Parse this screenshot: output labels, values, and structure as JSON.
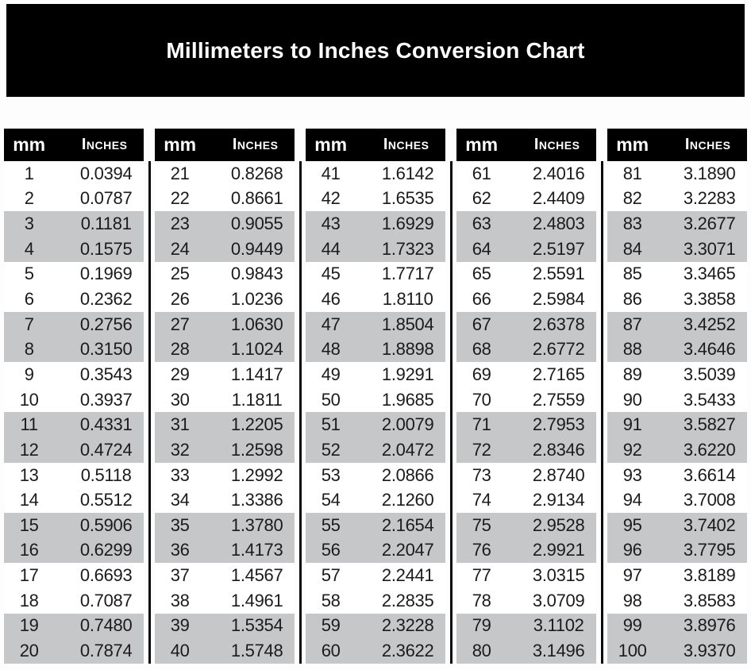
{
  "title": "Millimeters to Inches Conversion Chart",
  "column_headers": {
    "mm": "mm",
    "inches": "Inches"
  },
  "colors": {
    "title_bar_bg": "#000000",
    "title_text": "#ffffff",
    "table_header_bg": "#000000",
    "table_header_text": "#ffffff",
    "stripe_bg": "#c6c7c8",
    "row_bg": "#ffffff",
    "value_text": "#1b1b1b",
    "divider": "#0a0a0a"
  },
  "chart_data": {
    "type": "table",
    "title": "Millimeters to Inches Conversion Chart",
    "column_headers": [
      "mm",
      "Inches"
    ],
    "layout": "5 side-by-side tables of 20 rows, rows shaded gray in pairs (3-4, 7-8, 11-12, 15-16, 19-20 of each table), black vertical divider between tables",
    "tables": [
      {
        "rows": [
          [
            "1",
            "0.0394"
          ],
          [
            "2",
            "0.0787"
          ],
          [
            "3",
            "0.1181"
          ],
          [
            "4",
            "0.1575"
          ],
          [
            "5",
            "0.1969"
          ],
          [
            "6",
            "0.2362"
          ],
          [
            "7",
            "0.2756"
          ],
          [
            "8",
            "0.3150"
          ],
          [
            "9",
            "0.3543"
          ],
          [
            "10",
            "0.3937"
          ],
          [
            "11",
            "0.4331"
          ],
          [
            "12",
            "0.4724"
          ],
          [
            "13",
            "0.5118"
          ],
          [
            "14",
            "0.5512"
          ],
          [
            "15",
            "0.5906"
          ],
          [
            "16",
            "0.6299"
          ],
          [
            "17",
            "0.6693"
          ],
          [
            "18",
            "0.7087"
          ],
          [
            "19",
            "0.7480"
          ],
          [
            "20",
            "0.7874"
          ]
        ]
      },
      {
        "rows": [
          [
            "21",
            "0.8268"
          ],
          [
            "22",
            "0.8661"
          ],
          [
            "23",
            "0.9055"
          ],
          [
            "24",
            "0.9449"
          ],
          [
            "25",
            "0.9843"
          ],
          [
            "26",
            "1.0236"
          ],
          [
            "27",
            "1.0630"
          ],
          [
            "28",
            "1.1024"
          ],
          [
            "29",
            "1.1417"
          ],
          [
            "30",
            "1.1811"
          ],
          [
            "31",
            "1.2205"
          ],
          [
            "32",
            "1.2598"
          ],
          [
            "33",
            "1.2992"
          ],
          [
            "34",
            "1.3386"
          ],
          [
            "35",
            "1.3780"
          ],
          [
            "36",
            "1.4173"
          ],
          [
            "37",
            "1.4567"
          ],
          [
            "38",
            "1.4961"
          ],
          [
            "39",
            "1.5354"
          ],
          [
            "40",
            "1.5748"
          ]
        ]
      },
      {
        "rows": [
          [
            "41",
            "1.6142"
          ],
          [
            "42",
            "1.6535"
          ],
          [
            "43",
            "1.6929"
          ],
          [
            "44",
            "1.7323"
          ],
          [
            "45",
            "1.7717"
          ],
          [
            "46",
            "1.8110"
          ],
          [
            "47",
            "1.8504"
          ],
          [
            "48",
            "1.8898"
          ],
          [
            "49",
            "1.9291"
          ],
          [
            "50",
            "1.9685"
          ],
          [
            "51",
            "2.0079"
          ],
          [
            "52",
            "2.0472"
          ],
          [
            "53",
            "2.0866"
          ],
          [
            "54",
            "2.1260"
          ],
          [
            "55",
            "2.1654"
          ],
          [
            "56",
            "2.2047"
          ],
          [
            "57",
            "2.2441"
          ],
          [
            "58",
            "2.2835"
          ],
          [
            "59",
            "2.3228"
          ],
          [
            "60",
            "2.3622"
          ]
        ]
      },
      {
        "rows": [
          [
            "61",
            "2.4016"
          ],
          [
            "62",
            "2.4409"
          ],
          [
            "63",
            "2.4803"
          ],
          [
            "64",
            "2.5197"
          ],
          [
            "65",
            "2.5591"
          ],
          [
            "66",
            "2.5984"
          ],
          [
            "67",
            "2.6378"
          ],
          [
            "68",
            "2.6772"
          ],
          [
            "69",
            "2.7165"
          ],
          [
            "70",
            "2.7559"
          ],
          [
            "71",
            "2.7953"
          ],
          [
            "72",
            "2.8346"
          ],
          [
            "73",
            "2.8740"
          ],
          [
            "74",
            "2.9134"
          ],
          [
            "75",
            "2.9528"
          ],
          [
            "76",
            "2.9921"
          ],
          [
            "77",
            "3.0315"
          ],
          [
            "78",
            "3.0709"
          ],
          [
            "79",
            "3.1102"
          ],
          [
            "80",
            "3.1496"
          ]
        ]
      },
      {
        "rows": [
          [
            "81",
            "3.1890"
          ],
          [
            "82",
            "3.2283"
          ],
          [
            "83",
            "3.2677"
          ],
          [
            "84",
            "3.3071"
          ],
          [
            "85",
            "3.3465"
          ],
          [
            "86",
            "3.3858"
          ],
          [
            "87",
            "3.4252"
          ],
          [
            "88",
            "3.4646"
          ],
          [
            "89",
            "3.5039"
          ],
          [
            "90",
            "3.5433"
          ],
          [
            "91",
            "3.5827"
          ],
          [
            "92",
            "3.6220"
          ],
          [
            "93",
            "3.6614"
          ],
          [
            "94",
            "3.7008"
          ],
          [
            "95",
            "3.7402"
          ],
          [
            "96",
            "3.7795"
          ],
          [
            "97",
            "3.8189"
          ],
          [
            "98",
            "3.8583"
          ],
          [
            "99",
            "3.8976"
          ],
          [
            "100",
            "3.9370"
          ]
        ]
      }
    ]
  }
}
